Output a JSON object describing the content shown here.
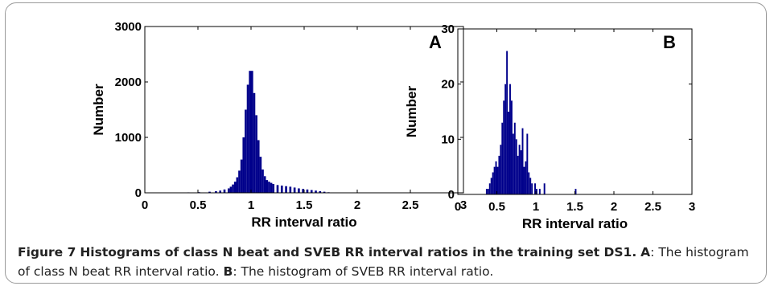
{
  "caption": {
    "figure_label": "Figure 7",
    "title": "Histograms of class N beat and SVEB RR interval ratios in the training set DS1.",
    "panel_a_label": "A",
    "panel_a_text": ": The histogram of class N beat RR interval ratio.",
    "panel_b_label": "B",
    "panel_b_text": ": The histogram of SVEB RR interval ratio."
  },
  "chart_data": [
    {
      "type": "bar",
      "panel_label": "A",
      "xlabel": "RR interval ratio",
      "ylabel": "Number",
      "xlim": [
        0,
        3
      ],
      "ylim": [
        0,
        3000
      ],
      "xticks": [
        "0",
        "0.5",
        "1",
        "1.5",
        "2",
        "2.5",
        "3"
      ],
      "yticks": [
        "0",
        "1000",
        "2000",
        "3000"
      ],
      "bar_color": "#00008b",
      "bin_width": 0.02,
      "x": [
        0.3,
        0.4,
        0.5,
        0.6,
        0.66,
        0.7,
        0.74,
        0.78,
        0.8,
        0.82,
        0.84,
        0.86,
        0.88,
        0.9,
        0.92,
        0.94,
        0.96,
        0.98,
        1.0,
        1.02,
        1.04,
        1.06,
        1.08,
        1.1,
        1.12,
        1.14,
        1.16,
        1.18,
        1.2,
        1.24,
        1.28,
        1.32,
        1.36,
        1.4,
        1.44,
        1.48,
        1.52,
        1.56,
        1.6,
        1.64,
        1.68,
        1.72,
        1.8,
        1.9
      ],
      "values": [
        5,
        8,
        12,
        20,
        30,
        40,
        60,
        80,
        110,
        150,
        200,
        280,
        400,
        600,
        1000,
        1500,
        1950,
        2200,
        2200,
        1800,
        1400,
        950,
        650,
        420,
        300,
        230,
        200,
        180,
        160,
        140,
        130,
        120,
        110,
        95,
        80,
        70,
        60,
        50,
        40,
        30,
        20,
        10,
        5,
        3
      ]
    },
    {
      "type": "bar",
      "panel_label": "B",
      "xlabel": "RR interval ratio",
      "ylabel": "Number",
      "xlim": [
        0,
        3
      ],
      "ylim": [
        0,
        30
      ],
      "xticks": [
        "0",
        "0.5",
        "1",
        "1.5",
        "2",
        "2.5",
        "3"
      ],
      "yticks": [
        "0",
        "10",
        "20",
        "30"
      ],
      "bar_color": "#00008b",
      "bin_width": 0.02,
      "x": [
        0.36,
        0.38,
        0.4,
        0.42,
        0.44,
        0.46,
        0.48,
        0.5,
        0.52,
        0.54,
        0.56,
        0.58,
        0.6,
        0.62,
        0.64,
        0.66,
        0.68,
        0.7,
        0.72,
        0.74,
        0.76,
        0.78,
        0.8,
        0.82,
        0.84,
        0.86,
        0.88,
        0.9,
        0.92,
        0.94,
        0.98,
        1.0,
        1.04,
        1.1,
        1.5
      ],
      "values": [
        1,
        1,
        2,
        3,
        4,
        5,
        6,
        5,
        7,
        9,
        13,
        17,
        20,
        26,
        15,
        20,
        17,
        11,
        13,
        10,
        7,
        9,
        8,
        12,
        5,
        6,
        11,
        4,
        3,
        2,
        2,
        1,
        1,
        2,
        1
      ]
    }
  ]
}
